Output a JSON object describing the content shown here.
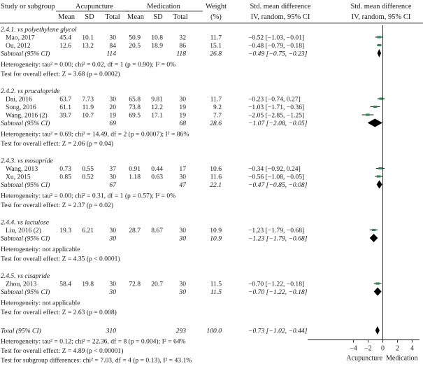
{
  "header": {
    "study": "Study or subgroup",
    "group1": "Acupuncture",
    "group2": "Medication",
    "mean": "Mean",
    "sd": "SD",
    "total": "Total",
    "weight_line1": "Weight",
    "weight_line2": "(%)",
    "est_line1": "Std. mean difference",
    "est_line2": "IV, random, 95% CI",
    "plot_line1": "Std. mean difference",
    "plot_line2": "IV, random, 95% CI"
  },
  "axis": {
    "ticks": [
      "−4",
      "−2",
      "0",
      "2",
      "4"
    ],
    "left_label": "Acupuncture",
    "right_label": "Medication"
  },
  "colors": {
    "study_marker": "#2e8b57",
    "diamond": "#000000",
    "line": "#1a1a1a"
  },
  "chart_data": {
    "type": "forest",
    "xlim": [
      -5,
      5
    ],
    "xticks": [
      -4,
      -2,
      0,
      2,
      4
    ],
    "groups": [
      {
        "name": "2.4.1. vs polyethylene glycol",
        "studies": [
          {
            "study": "Mao, 2017",
            "m1": "45.4",
            "sd1": "10.1",
            "n1": "30",
            "m2": "50.9",
            "sd2": "10.8",
            "n2": "32",
            "weight": "11.7",
            "ci_text": "−0.52 [−1.03, −0.01]",
            "est": -0.52,
            "lo": -1.03,
            "hi": -0.01
          },
          {
            "study": "Ou, 2012",
            "m1": "12.6",
            "sd1": "13.2",
            "n1": "84",
            "m2": "20.5",
            "sd2": "18.9",
            "n2": "86",
            "weight": "15.1",
            "ci_text": "−0.48 [−0.79, −0.18]",
            "est": -0.48,
            "lo": -0.79,
            "hi": -0.18
          }
        ],
        "subtotal": {
          "label": "Subtotal (95% CI)",
          "n1": "114",
          "n2": "118",
          "weight": "26.8",
          "ci_text": "−0.49 [−0.75, −0.23]",
          "est": -0.49,
          "lo": -0.75,
          "hi": -0.23
        },
        "het": "Heterogeneity: tau² = 0.00; chi² = 0.02, df = 1 (p = 0.90); I² = 0%",
        "effect": "Test for overall effect: Z = 3.68 (p = 0.0002)"
      },
      {
        "name": "2.4.2. vs prucalopride",
        "studies": [
          {
            "study": "Dai, 2016",
            "m1": "63.7",
            "sd1": "7.73",
            "n1": "30",
            "m2": "65.8",
            "sd2": "9.81",
            "n2": "30",
            "weight": "11.7",
            "ci_text": "−0.23 [−0.74, 0.27]",
            "est": -0.23,
            "lo": -0.74,
            "hi": 0.27
          },
          {
            "study": "Song, 2016",
            "m1": "61.1",
            "sd1": "11.9",
            "n1": "20",
            "m2": "73.8",
            "sd2": "12.2",
            "n2": "19",
            "weight": "9.2",
            "ci_text": "−1.03 [−1.71, −0.36]",
            "est": -1.03,
            "lo": -1.71,
            "hi": -0.36
          },
          {
            "study": "Wang, 2016 (2)",
            "m1": "39.7",
            "sd1": "10.7",
            "n1": "19",
            "m2": "69.5",
            "sd2": "17.1",
            "n2": "19",
            "weight": "7.7",
            "ci_text": "−2.05 [−2.85, −1.25]",
            "est": -2.05,
            "lo": -2.85,
            "hi": -1.25
          }
        ],
        "subtotal": {
          "label": "Subtotal (95% CI)",
          "n1": "69",
          "n2": "68",
          "weight": "28.6",
          "ci_text": "−1.07 [−2.08, −0.05]",
          "est": -1.07,
          "lo": -2.08,
          "hi": -0.05
        },
        "het": "Heterogeneity: tau² = 0.69; chi² = 14.49, df = 2 (p = 0.0007); I² = 86%",
        "effect": "Test for overall effect: Z = 2.06 (p = 0.04)"
      },
      {
        "name": "2.4.3. vs mosapride",
        "studies": [
          {
            "study": "Wang, 2013",
            "m1": "0.73",
            "sd1": "0.55",
            "n1": "37",
            "m2": "0.91",
            "sd2": "0.44",
            "n2": "17",
            "weight": "10.6",
            "ci_text": "−0.34 [−0.92, 0.24]",
            "est": -0.34,
            "lo": -0.92,
            "hi": 0.24
          },
          {
            "study": "Xu, 2015",
            "m1": "0.85",
            "sd1": "0.52",
            "n1": "30",
            "m2": "1.18",
            "sd2": "0.63",
            "n2": "30",
            "weight": "11.6",
            "ci_text": "−0.56 [−1.08, −0.05]",
            "est": -0.56,
            "lo": -1.08,
            "hi": -0.05
          }
        ],
        "subtotal": {
          "label": "Subtotal (95% CI)",
          "n1": "67",
          "n2": "47",
          "weight": "22.1",
          "ci_text": "−0.47 [−0.85, −0.08]",
          "est": -0.47,
          "lo": -0.85,
          "hi": -0.08
        },
        "het": "Heterogeneity: tau² = 0.00; chi² = 0.31, df = 1 (p = 0.57); I² = 0%",
        "effect": "Test for overall effect: Z = 2.37 (p = 0.02)"
      },
      {
        "name": "2.4.4. vs lactulose",
        "studies": [
          {
            "study": "Liu, 2016 (2)",
            "m1": "19.3",
            "sd1": "6.21",
            "n1": "30",
            "m2": "28.7",
            "sd2": "8.67",
            "n2": "30",
            "weight": "10.9",
            "ci_text": "−1.23 [−1.79, −0.68]",
            "est": -1.23,
            "lo": -1.79,
            "hi": -0.68
          }
        ],
        "subtotal": {
          "label": "Subtotal (95% CI)",
          "n1": "30",
          "n2": "30",
          "weight": "10.9",
          "ci_text": "−1.23 [−1.79, −0.68]",
          "est": -1.23,
          "lo": -1.79,
          "hi": -0.68
        },
        "het": "Heterogeneity: not applicable",
        "effect": "Test for overall effect: Z = 4.35 (p < 0.0001)"
      },
      {
        "name": "2.4.5. vs cisapride",
        "studies": [
          {
            "study": "Zhou, 2013",
            "m1": "58.4",
            "sd1": "19.8",
            "n1": "30",
            "m2": "72.8",
            "sd2": "20.7",
            "n2": "30",
            "weight": "11.5",
            "ci_text": "−0.70 [−1.22, −0.18]",
            "est": -0.7,
            "lo": -1.22,
            "hi": -0.18
          }
        ],
        "subtotal": {
          "label": "Subtotal (95% CI)",
          "n1": "30",
          "n2": "30",
          "weight": "11.5",
          "ci_text": "−0.70 [−1.22, −0.18]",
          "est": -0.7,
          "lo": -1.22,
          "hi": -0.18
        },
        "het": "Heterogeneity: not applicable",
        "effect": "Test for overall effect: Z = 2.63 (p = 0.008)"
      }
    ],
    "total": {
      "label": "Total (95% CI)",
      "n1": "310",
      "n2": "293",
      "weight": "100.0",
      "ci_text": "−0.73 [−1.02, −0.44]",
      "est": -0.73,
      "lo": -1.02,
      "hi": -0.44
    },
    "footer": [
      "Heterogeneity: tau² = 0.12; chi² = 22.36, df = 8 (p = 0.004); I² = 64%",
      "Test for overall effect: Z = 4.89 (p < 0.00001)",
      "Test for subgroup differences: chi² = 7.03, df = 4 (p = 0.13), I² = 43.1%"
    ]
  }
}
